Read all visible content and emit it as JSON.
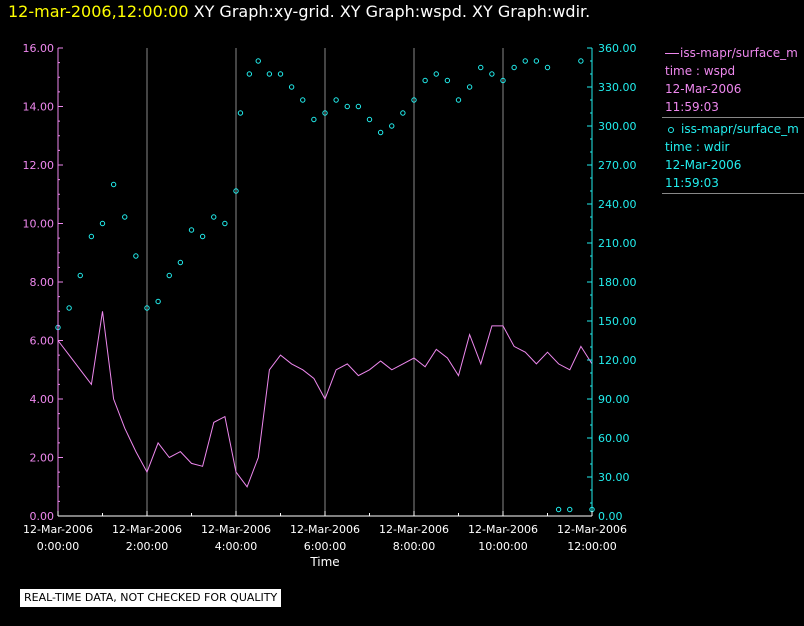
{
  "header": {
    "timestamp": "12-mar-2006,12:00:00",
    "graphs": "XY Graph:xy-grid.  XY Graph:wspd.  XY Graph:wdir."
  },
  "disclaimer": "REAL-TIME DATA, NOT CHECKED FOR QUALITY",
  "legend": {
    "entries": [
      {
        "series": "wspd",
        "name": "iss-mapr/surface_m",
        "line2": "time : wspd",
        "date": "12-Mar-2006",
        "time": "11:59:03"
      },
      {
        "series": "wdir",
        "name": "iss-mapr/surface_m",
        "line2": "time : wdir",
        "date": "12-Mar-2006",
        "time": "11:59:03"
      }
    ]
  },
  "colors": {
    "wspd": "#ee88ee",
    "wdir": "#22eeee",
    "timestamp": "#ffff00",
    "grid": "#888888",
    "axis": "#ffffff"
  },
  "chart_data": {
    "type": "line",
    "xlabel": "Time",
    "x_unit": "hours since 12-Mar-2006 0:00:00",
    "xlim": [
      0,
      12
    ],
    "x_ticks": [
      {
        "value": 0,
        "date": "12-Mar-2006",
        "time": "0:00:00"
      },
      {
        "value": 2,
        "date": "12-Mar-2006",
        "time": "2:00:00"
      },
      {
        "value": 4,
        "date": "12-Mar-2006",
        "time": "4:00:00"
      },
      {
        "value": 6,
        "date": "12-Mar-2006",
        "time": "6:00:00"
      },
      {
        "value": 8,
        "date": "12-Mar-2006",
        "time": "8:00:00"
      },
      {
        "value": 10,
        "date": "12-Mar-2006",
        "time": "10:00:00"
      },
      {
        "value": 12,
        "date": "12-Mar-2006",
        "time": "12:00:00"
      }
    ],
    "grid": "vertical lines at hour ticks",
    "y_left": {
      "series": "wspd",
      "range": [
        0,
        16
      ],
      "ticks": [
        "0.00",
        "2.00",
        "4.00",
        "6.00",
        "8.00",
        "10.00",
        "12.00",
        "14.00",
        "16.00"
      ]
    },
    "y_right": {
      "series": "wdir",
      "range": [
        0,
        360
      ],
      "ticks": [
        "0.00",
        "30.00",
        "60.00",
        "90.00",
        "120.00",
        "150.00",
        "180.00",
        "210.00",
        "240.00",
        "270.00",
        "300.00",
        "330.00",
        "360.00"
      ]
    },
    "series": [
      {
        "name": "wspd",
        "style": "line",
        "axis": "left",
        "x": [
          0,
          0.25,
          0.5,
          0.75,
          1,
          1.25,
          1.5,
          1.75,
          2,
          2.25,
          2.5,
          2.75,
          3,
          3.25,
          3.5,
          3.75,
          4,
          4.25,
          4.5,
          4.75,
          5,
          5.25,
          5.5,
          5.75,
          6,
          6.25,
          6.5,
          6.75,
          7,
          7.25,
          7.5,
          7.75,
          8,
          8.25,
          8.5,
          8.75,
          9,
          9.25,
          9.5,
          9.75,
          10,
          10.25,
          10.5,
          10.75,
          11,
          11.25,
          11.5,
          11.75,
          12
        ],
        "values": [
          6.0,
          5.5,
          5.0,
          4.5,
          7.0,
          4.0,
          3.0,
          2.2,
          1.5,
          2.5,
          2.0,
          2.2,
          1.8,
          1.7,
          3.2,
          3.4,
          1.5,
          1.0,
          2.0,
          5.0,
          5.5,
          5.2,
          5.0,
          4.7,
          4.0,
          5.0,
          5.2,
          4.8,
          5.0,
          5.3,
          5.0,
          5.2,
          5.4,
          5.1,
          5.7,
          5.4,
          4.8,
          6.2,
          5.2,
          6.5,
          6.5,
          5.8,
          5.6,
          5.2,
          5.6,
          5.2,
          5.0,
          5.8,
          5.2
        ]
      },
      {
        "name": "wdir",
        "style": "scatter",
        "axis": "right",
        "x": [
          0,
          0.25,
          0.5,
          0.75,
          1,
          1.25,
          1.5,
          1.75,
          2,
          2.25,
          2.5,
          2.75,
          3,
          3.25,
          3.5,
          3.75,
          4,
          4.1,
          4.3,
          4.5,
          4.75,
          5,
          5.25,
          5.5,
          5.75,
          6,
          6.25,
          6.5,
          6.75,
          7,
          7.25,
          7.5,
          7.75,
          8,
          8.25,
          8.5,
          8.75,
          9,
          9.25,
          9.5,
          9.75,
          10,
          10.25,
          10.5,
          10.75,
          11,
          11.25,
          11.5,
          11.75,
          12
        ],
        "values": [
          145,
          160,
          185,
          215,
          225,
          255,
          230,
          200,
          160,
          165,
          185,
          195,
          220,
          215,
          230,
          225,
          250,
          310,
          340,
          350,
          340,
          340,
          330,
          320,
          305,
          310,
          320,
          315,
          315,
          305,
          295,
          300,
          310,
          320,
          335,
          340,
          335,
          320,
          330,
          345,
          340,
          335,
          345,
          350,
          350,
          345,
          5,
          5,
          350,
          5
        ]
      }
    ]
  }
}
